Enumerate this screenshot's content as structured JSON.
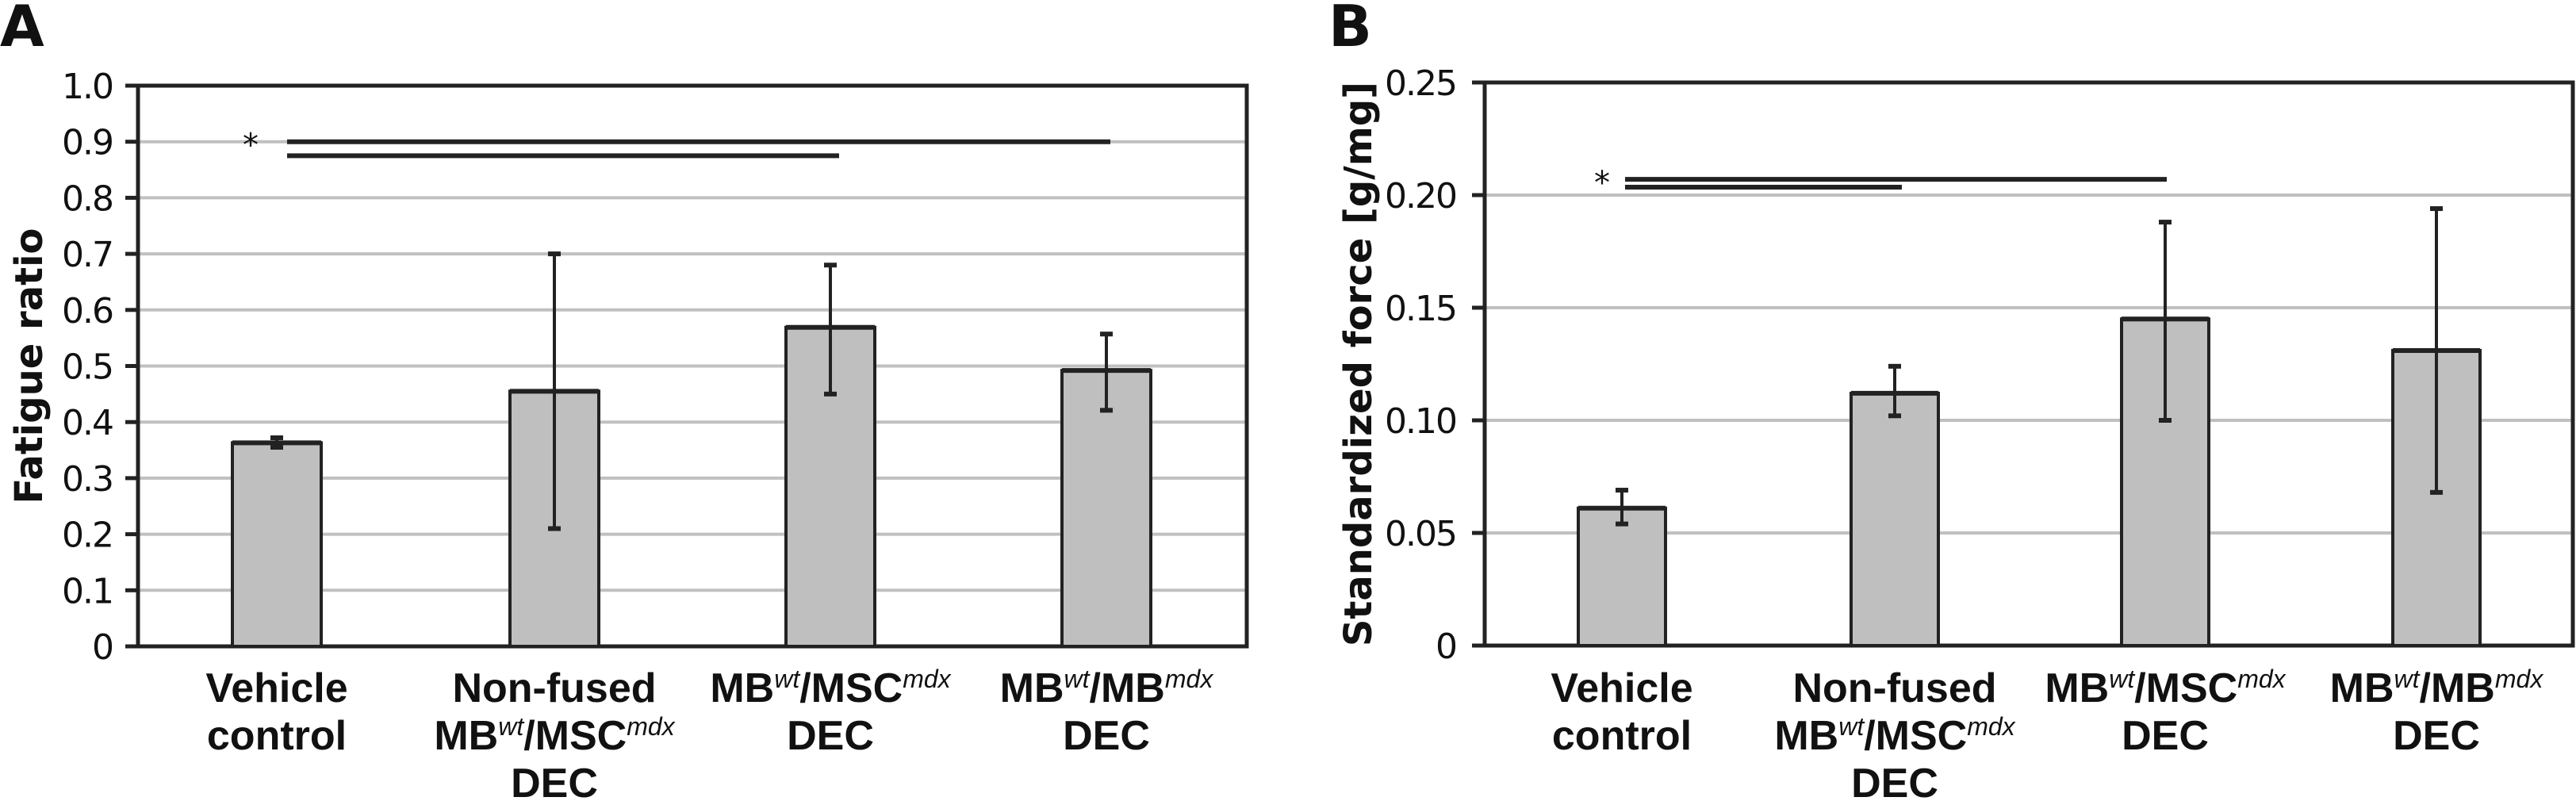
{
  "colors": {
    "bar_fill": "#bfbfbf",
    "bar_stroke": "#222222",
    "grid": "#c0c0c0",
    "axis": "#222222"
  },
  "chart_data": [
    {
      "panel": "A",
      "type": "bar",
      "title": "",
      "xlabel": "",
      "ylabel": "Fatigue ratio",
      "ylim": [
        0,
        1.0
      ],
      "yticks": [
        0,
        0.1,
        0.2,
        0.3,
        0.4,
        0.5,
        0.6,
        0.7,
        0.8,
        0.9,
        1.0
      ],
      "ytick_labels": [
        "0",
        "0.1",
        "0.2",
        "0.3",
        "0.4",
        "0.5",
        "0.6",
        "0.7",
        "0.8",
        "0.9",
        "1.0"
      ],
      "grid": true,
      "categories": [
        {
          "lines": [
            [
              {
                "t": "Vehicle"
              }
            ],
            [
              {
                "t": "control"
              }
            ]
          ]
        },
        {
          "lines": [
            [
              {
                "t": "Non-fused"
              }
            ],
            [
              {
                "t": "MB"
              },
              {
                "t": "wt",
                "sup": true
              },
              {
                "t": "/MSC"
              },
              {
                "t": "mdx",
                "sup": true
              }
            ],
            [
              {
                "t": "DEC"
              }
            ]
          ]
        },
        {
          "lines": [
            [
              {
                "t": "MB"
              },
              {
                "t": "wt",
                "sup": true
              },
              {
                "t": "/MSC"
              },
              {
                "t": "mdx",
                "sup": true
              }
            ],
            [
              {
                "t": "DEC"
              }
            ]
          ]
        },
        {
          "lines": [
            [
              {
                "t": "MB"
              },
              {
                "t": "wt",
                "sup": true
              },
              {
                "t": "/MB"
              },
              {
                "t": "mdx",
                "sup": true
              }
            ],
            [
              {
                "t": "DEC"
              }
            ]
          ]
        }
      ],
      "category_names": [
        "Vehicle control",
        "Non-fused MBwt/MSCmdx DEC",
        "MBwt/MSCmdx DEC",
        "MBwt/MBmdx DEC"
      ],
      "values": [
        0.363,
        0.455,
        0.569,
        0.492
      ],
      "error_low": [
        0.355,
        0.21,
        0.45,
        0.421
      ],
      "error_high": [
        0.372,
        0.7,
        0.68,
        0.557
      ],
      "significance": [
        {
          "label": "*",
          "from": 0,
          "to": 3,
          "y": 0.9
        },
        {
          "from": 0,
          "to": 2,
          "y": 0.875
        }
      ]
    },
    {
      "panel": "B",
      "type": "bar",
      "title": "",
      "xlabel": "",
      "ylabel": "Standardized force [g/mg]",
      "ylim": [
        0,
        0.25
      ],
      "yticks": [
        0,
        0.05,
        0.1,
        0.15,
        0.2,
        0.25
      ],
      "ytick_labels": [
        "0",
        "0.05",
        "0.10",
        "0.15",
        "0.20",
        "0.25"
      ],
      "grid": true,
      "categories": [
        {
          "lines": [
            [
              {
                "t": "Vehicle"
              }
            ],
            [
              {
                "t": "control"
              }
            ]
          ]
        },
        {
          "lines": [
            [
              {
                "t": "Non-fused"
              }
            ],
            [
              {
                "t": "MB"
              },
              {
                "t": "wt",
                "sup": true
              },
              {
                "t": "/MSC"
              },
              {
                "t": "mdx",
                "sup": true
              }
            ],
            [
              {
                "t": "DEC"
              }
            ]
          ]
        },
        {
          "lines": [
            [
              {
                "t": "MB"
              },
              {
                "t": "wt",
                "sup": true
              },
              {
                "t": "/MSC"
              },
              {
                "t": "mdx",
                "sup": true
              }
            ],
            [
              {
                "t": "DEC"
              }
            ]
          ]
        },
        {
          "lines": [
            [
              {
                "t": "MB"
              },
              {
                "t": "wt",
                "sup": true
              },
              {
                "t": "/MB"
              },
              {
                "t": "mdx",
                "sup": true
              }
            ],
            [
              {
                "t": "DEC"
              }
            ]
          ]
        }
      ],
      "category_names": [
        "Vehicle control",
        "Non-fused MBwt/MSCmdx DEC",
        "MBwt/MSCmdx DEC",
        "MBwt/MBmdx DEC"
      ],
      "values": [
        0.061,
        0.112,
        0.145,
        0.131
      ],
      "error_low": [
        0.054,
        0.102,
        0.1,
        0.068
      ],
      "error_high": [
        0.069,
        0.124,
        0.188,
        0.194
      ],
      "significance": [
        {
          "label": "*",
          "from": 0,
          "to": 2,
          "y": 0.207
        },
        {
          "from": 0,
          "to": 1,
          "y": 0.2035
        }
      ]
    }
  ]
}
